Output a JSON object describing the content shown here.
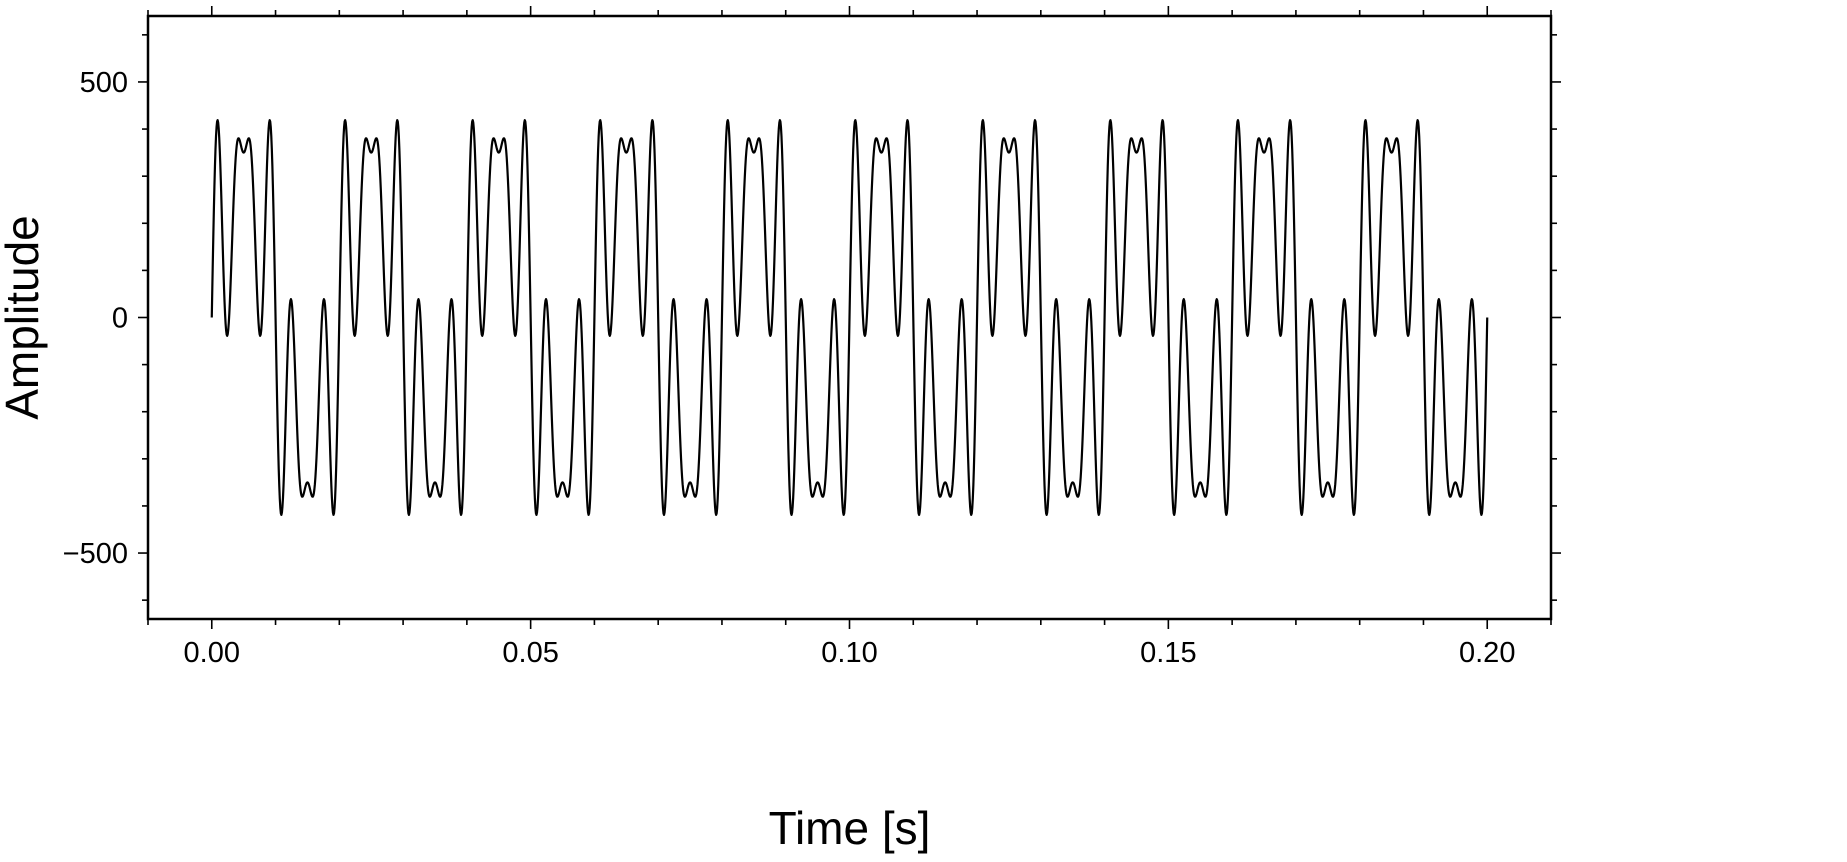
{
  "chart_data": {
    "type": "line",
    "title": "",
    "xlabel": "Time [s]",
    "ylabel": "Amplitude",
    "xlim": [
      -0.01,
      0.21
    ],
    "ylim": [
      -640,
      640
    ],
    "x_ticks": [
      {
        "value": 0.0,
        "label": "0.00"
      },
      {
        "value": 0.05,
        "label": "0.05"
      },
      {
        "value": 0.1,
        "label": "0.10"
      },
      {
        "value": 0.15,
        "label": "0.15"
      },
      {
        "value": 0.2,
        "label": "0.20"
      }
    ],
    "y_ticks": [
      {
        "value": -500,
        "label": "−500"
      },
      {
        "value": 0,
        "label": "0"
      },
      {
        "value": 500,
        "label": "500"
      }
    ],
    "x_minor_step": 0.01,
    "y_minor_step": 100,
    "grid": false,
    "line_color": "#000000",
    "series": [
      {
        "signal": {
          "t_start": 0.0,
          "t_end": 0.2,
          "samples": 2401,
          "components": [
            {
              "amplitude": 300,
              "frequency_hz": 50
            },
            {
              "amplitude": 200,
              "frequency_hz": 250
            },
            {
              "amplitude": 150,
              "frequency_hz": 350
            }
          ]
        }
      }
    ]
  }
}
